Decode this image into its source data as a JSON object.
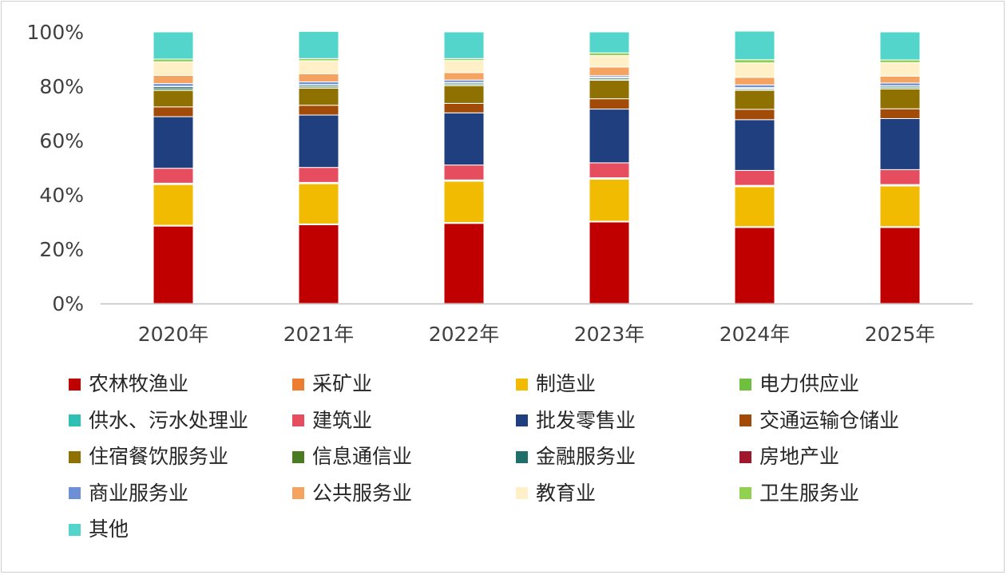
{
  "chart_data": {
    "type": "bar",
    "stacked": true,
    "categories": [
      "2020年",
      "2021年",
      "2022年",
      "2023年",
      "2024年",
      "2025年"
    ],
    "ylim": [
      0,
      100
    ],
    "yticks": [
      "0%",
      "20%",
      "40%",
      "60%",
      "80%",
      "100%"
    ],
    "grid": false,
    "legend_position": "bottom",
    "series": [
      {
        "name": "农林牧渔业",
        "color": "#C00000",
        "values": [
          28.5,
          29.0,
          29.5,
          30.0,
          28.0,
          28.0
        ]
      },
      {
        "name": "采矿业",
        "color": "#ED7D31",
        "values": [
          0.3,
          0.3,
          0.3,
          0.3,
          0.3,
          0.3
        ]
      },
      {
        "name": "制造业",
        "color": "#F0BB00",
        "values": [
          15.0,
          14.8,
          15.2,
          15.5,
          14.7,
          15.0
        ]
      },
      {
        "name": "电力供应业",
        "color": "#70C040",
        "values": [
          0.3,
          0.3,
          0.3,
          0.3,
          0.3,
          0.3
        ]
      },
      {
        "name": "供水、污水处理业",
        "color": "#2EBFB5",
        "values": [
          0.2,
          0.2,
          0.2,
          0.2,
          0.2,
          0.2
        ]
      },
      {
        "name": "建筑业",
        "color": "#E64E5F",
        "values": [
          5.5,
          5.5,
          5.5,
          5.5,
          5.5,
          5.5
        ]
      },
      {
        "name": "批发零售业",
        "color": "#203F7E",
        "values": [
          19.0,
          19.3,
          19.2,
          19.8,
          18.7,
          18.8
        ]
      },
      {
        "name": "交通运输仓储业",
        "color": "#A24A08",
        "values": [
          3.6,
          3.6,
          3.5,
          3.8,
          3.8,
          3.6
        ]
      },
      {
        "name": "住宿餐饮服务业",
        "color": "#8E7100",
        "values": [
          6.0,
          6.3,
          6.5,
          6.8,
          7.0,
          7.3
        ]
      },
      {
        "name": "信息通信业",
        "color": "#4A7A22",
        "values": [
          0.6,
          0.5,
          0.5,
          0.4,
          0.4,
          0.5
        ]
      },
      {
        "name": "金融服务业",
        "color": "#1E6E6A",
        "values": [
          0.8,
          0.6,
          0.5,
          0.5,
          0.4,
          0.5
        ]
      },
      {
        "name": "房地产业",
        "color": "#A0172D",
        "values": [
          0.2,
          0.2,
          0.2,
          0.2,
          0.2,
          0.2
        ]
      },
      {
        "name": "商业服务业",
        "color": "#6C8FD6",
        "values": [
          1.0,
          1.0,
          0.9,
          0.6,
          1.0,
          1.0
        ]
      },
      {
        "name": "公共服务业",
        "color": "#F4A460",
        "values": [
          3.0,
          3.0,
          2.7,
          3.2,
          2.8,
          2.5
        ]
      },
      {
        "name": "教育业",
        "color": "#FFF0C8",
        "values": [
          5.0,
          4.8,
          4.5,
          4.2,
          5.3,
          5.0
        ]
      },
      {
        "name": "卫生服务业",
        "color": "#92D050",
        "values": [
          1.0,
          0.8,
          0.7,
          1.0,
          1.2,
          1.0
        ]
      },
      {
        "name": "其他",
        "color": "#54D5CC",
        "values": [
          10.0,
          10.0,
          9.8,
          7.7,
          10.5,
          10.3
        ]
      }
    ]
  }
}
